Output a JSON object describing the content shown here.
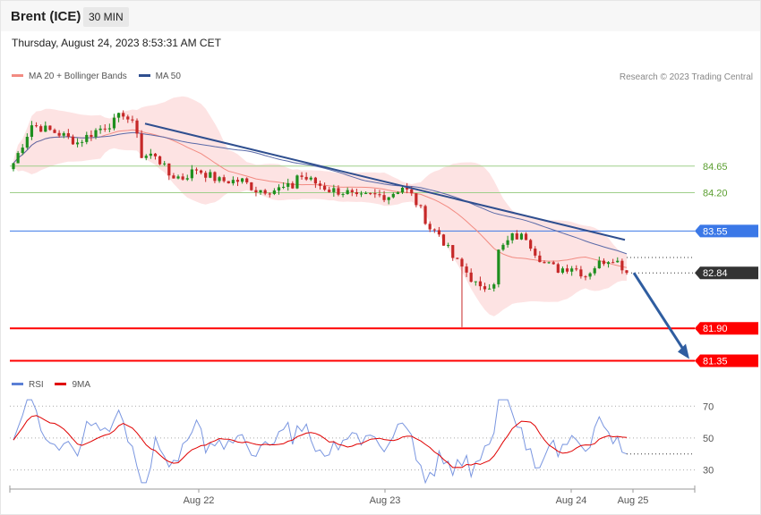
{
  "header": {
    "symbol": "Brent (ICE)",
    "interval": "30 MIN"
  },
  "timestamp": "Thursday, August 24, 2023 8:53:31 AM CET",
  "legend_price": [
    {
      "label": "MA 20 + Bollinger Bands",
      "color": "#f28b82"
    },
    {
      "label": "MA 50",
      "color": "#2f4f8f"
    }
  ],
  "credit": "Research © 2023 Trading Central",
  "legend_rsi": [
    {
      "label": "RSI",
      "color": "#5b7fd6"
    },
    {
      "label": "9MA",
      "color": "#e00000"
    }
  ],
  "chart_data": [
    {
      "type": "candlestick",
      "x_ticks": [
        "Aug 22",
        "Aug 23",
        "Aug 24",
        "Aug 25"
      ],
      "ylim": [
        81.1,
        85.98
      ],
      "levels": [
        {
          "value": 84.65,
          "label": "84.65",
          "color": "#9fcf8a",
          "text": "#5a9e2f",
          "style": "thin"
        },
        {
          "value": 84.2,
          "label": "84.20",
          "color": "#9fcf8a",
          "text": "#5a9e2f",
          "style": "thin"
        },
        {
          "value": 83.55,
          "label": "83.55",
          "color": "#3b78e7",
          "text": "#ffffff",
          "style": "tag"
        },
        {
          "value": 82.84,
          "label": "82.84",
          "color": "#333333",
          "text": "#ffffff",
          "style": "tag-dotted"
        },
        {
          "value": 81.9,
          "label": "81.90",
          "color": "#ff0000",
          "text": "#ffffff",
          "style": "tag-bold"
        },
        {
          "value": 81.35,
          "label": "81.35",
          "color": "#ff0000",
          "text": "#ffffff",
          "style": "tag-bold"
        }
      ]
    },
    {
      "type": "line",
      "name": "RSI",
      "ylim": [
        18,
        78
      ],
      "ticks": [
        "70",
        "50",
        "30"
      ]
    }
  ]
}
